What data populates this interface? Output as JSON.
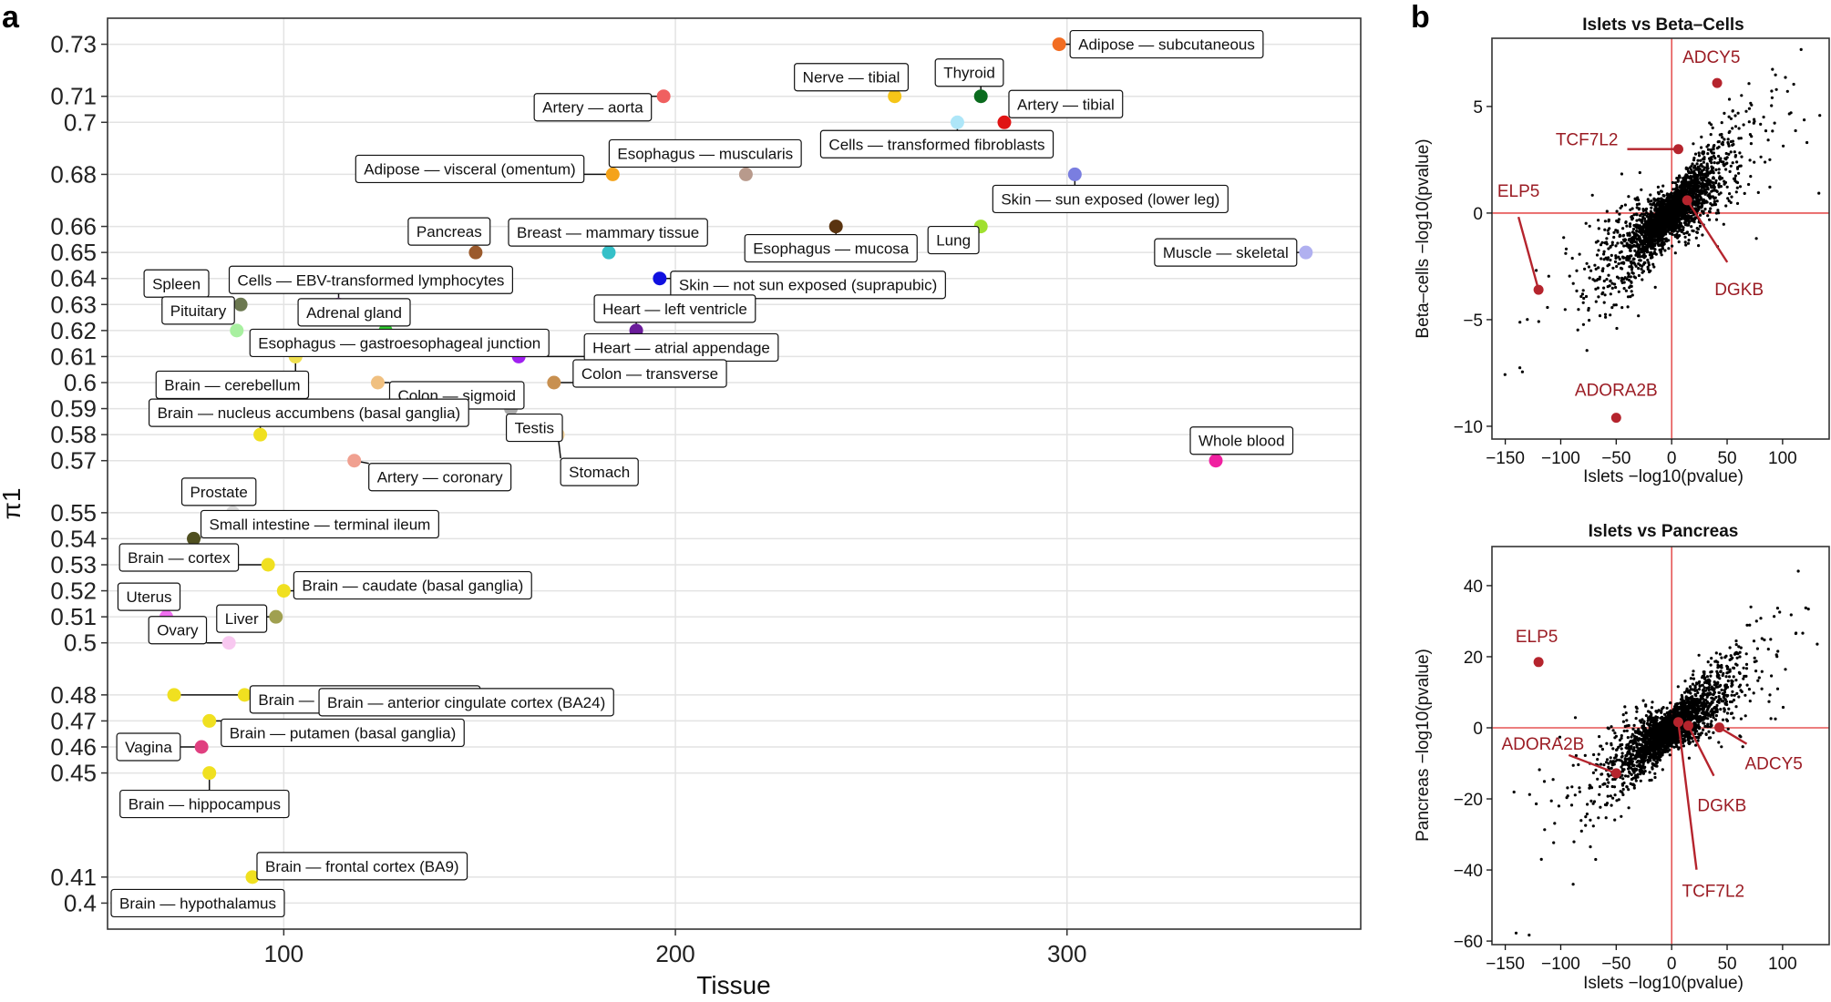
{
  "figure": {
    "panel_a_letter": "a",
    "panel_b_letter": "b"
  },
  "chart_data": [
    {
      "type": "scatter",
      "panel": "a",
      "title": "",
      "xlabel": "Tissue",
      "ylabel": "π1",
      "xlim": [
        55,
        375
      ],
      "ylim": [
        0.39,
        0.74
      ],
      "x_ticks": [
        100,
        200,
        300
      ],
      "y_ticks": [
        0.4,
        0.41,
        0.45,
        0.46,
        0.47,
        0.48,
        0.5,
        0.51,
        0.52,
        0.53,
        0.54,
        0.55,
        0.57,
        0.58,
        0.59,
        0.6,
        0.61,
        0.62,
        0.63,
        0.64,
        0.65,
        0.66,
        0.68,
        0.7,
        0.71,
        0.73
      ],
      "y_tick_labels": [
        "0.4",
        "0.41",
        "0.45",
        "0.46",
        "0.47",
        "0.48",
        "0.5",
        "0.51",
        "0.52",
        "0.53",
        "0.54",
        "0.55",
        "0.57",
        "0.58",
        "0.59",
        "0.6",
        "0.61",
        "0.62",
        "0.63",
        "0.64",
        "0.65",
        "0.66",
        "0.68",
        "0.7",
        "0.71",
        "0.73"
      ],
      "grid": true,
      "points": [
        {
          "label": "Adipose — subcutaneous",
          "x": 298,
          "y": 0.73,
          "color": "#f26d22"
        },
        {
          "label": "Nerve — tibial",
          "x": 256,
          "y": 0.71,
          "color": "#f5c518"
        },
        {
          "label": "Thyroid",
          "x": 278,
          "y": 0.71,
          "color": "#0a6b1e"
        },
        {
          "label": "Artery — aorta",
          "x": 197,
          "y": 0.71,
          "color": "#f06060"
        },
        {
          "label": "Artery — tibial",
          "x": 284,
          "y": 0.7,
          "color": "#e01414"
        },
        {
          "label": "Cells — transformed fibroblasts",
          "x": 272,
          "y": 0.7,
          "color": "#aee6f8"
        },
        {
          "label": "Esophagus — muscularis",
          "x": 218,
          "y": 0.68,
          "color": "#b89a8c"
        },
        {
          "label": "Adipose — visceral (omentum)",
          "x": 184,
          "y": 0.68,
          "color": "#f5a31a"
        },
        {
          "label": "Skin — sun exposed (lower leg)",
          "x": 302,
          "y": 0.68,
          "color": "#7a7ee0"
        },
        {
          "label": "Esophagus — mucosa",
          "x": 241,
          "y": 0.66,
          "color": "#5a3410"
        },
        {
          "label": "Lung",
          "x": 278,
          "y": 0.66,
          "color": "#a0e030"
        },
        {
          "label": "Pancreas",
          "x": 149,
          "y": 0.65,
          "color": "#9b5a2c"
        },
        {
          "label": "Breast — mammary tissue",
          "x": 183,
          "y": 0.65,
          "color": "#35c0c8"
        },
        {
          "label": "Muscle — skeletal",
          "x": 361,
          "y": 0.65,
          "color": "#b0b0f0"
        },
        {
          "label": "Skin — not sun exposed (suprapubic)",
          "x": 196,
          "y": 0.64,
          "color": "#1010e0"
        },
        {
          "label": "Spleen",
          "x": 89,
          "y": 0.63,
          "color": "#6b7850"
        },
        {
          "label": "Cells — EBV-transformed lymphocytes",
          "x": 114,
          "y": 0.63,
          "color": "#c070e0"
        },
        {
          "label": "Pituitary",
          "x": 88,
          "y": 0.62,
          "color": "#a8f0a0"
        },
        {
          "label": "Adrenal gland",
          "x": 126,
          "y": 0.62,
          "color": "#30d030"
        },
        {
          "label": "Heart — left ventricle",
          "x": 190,
          "y": 0.62,
          "color": "#6a1b9a"
        },
        {
          "label": "Esophagus — gastroesophageal junction",
          "x": 103,
          "y": 0.61,
          "color": "#f0e050"
        },
        {
          "label": "Heart — atrial appendage",
          "x": 160,
          "y": 0.61,
          "color": "#a020f0"
        },
        {
          "label": "Brain — cerebellum",
          "x": 103,
          "y": 0.61,
          "color": "#f0e050"
        },
        {
          "label": "Colon — sigmoid",
          "x": 124,
          "y": 0.6,
          "color": "#f0c080"
        },
        {
          "label": "Colon — transverse",
          "x": 169,
          "y": 0.6,
          "color": "#c89050"
        },
        {
          "label": "Testis",
          "x": 158,
          "y": 0.59,
          "color": "#aaaaaa"
        },
        {
          "label": "Brain — nucleus accumbens (basal ganglia)",
          "x": 94,
          "y": 0.58,
          "color": "#f0e020"
        },
        {
          "label": "Stomach",
          "x": 170,
          "y": 0.58,
          "color": "#f8d8a0"
        },
        {
          "label": "Whole blood",
          "x": 338,
          "y": 0.57,
          "color": "#f020a0"
        },
        {
          "label": "Artery — coronary",
          "x": 118,
          "y": 0.57,
          "color": "#f0a090"
        },
        {
          "label": "Prostate",
          "x": 87,
          "y": 0.55,
          "color": "#d8d8d8"
        },
        {
          "label": "Small intestine — terminal ileum",
          "x": 77,
          "y": 0.54,
          "color": "#505020"
        },
        {
          "label": "Brain — cortex",
          "x": 96,
          "y": 0.53,
          "color": "#f0e020"
        },
        {
          "label": "Brain — caudate (basal ganglia)",
          "x": 100,
          "y": 0.52,
          "color": "#f0e020"
        },
        {
          "label": "Uterus",
          "x": 70,
          "y": 0.51,
          "color": "#f070f0"
        },
        {
          "label": "Liver",
          "x": 98,
          "y": 0.51,
          "color": "#a0a050"
        },
        {
          "label": "Ovary",
          "x": 86,
          "y": 0.5,
          "color": "#f8c8f0"
        },
        {
          "label": "Brain — cerebellar hemisphere",
          "x": 90,
          "y": 0.48,
          "color": "#f0e020"
        },
        {
          "label": "Brain — anterior cingulate cortex (BA24)",
          "x": 72,
          "y": 0.48,
          "color": "#f0e020"
        },
        {
          "label": "Brain — putamen (basal ganglia)",
          "x": 81,
          "y": 0.47,
          "color": "#f0e020"
        },
        {
          "label": "Vagina",
          "x": 79,
          "y": 0.46,
          "color": "#e04080"
        },
        {
          "label": "Brain — hippocampus",
          "x": 81,
          "y": 0.45,
          "color": "#f0e020"
        },
        {
          "label": "Brain — frontal cortex (BA9)",
          "x": 92,
          "y": 0.41,
          "color": "#f0e020"
        },
        {
          "label": "Brain — hypothalamus",
          "x": 71,
          "y": 0.4,
          "color": "#f0e020"
        }
      ]
    },
    {
      "type": "scatter",
      "panel": "b-top",
      "title": "Islets vs Beta–Cells",
      "xlabel": "Islets −log10(pvalue)",
      "ylabel": "Beta–cells −log10(pvalue)",
      "xlim": [
        -162,
        142
      ],
      "ylim": [
        -10.6,
        8.2
      ],
      "x_ticks": [
        -150,
        -100,
        -50,
        0,
        50,
        100
      ],
      "x_tick_labels": [
        "−150",
        "−100",
        "−50",
        "0",
        "50",
        "100"
      ],
      "y_ticks": [
        -10,
        -5,
        0,
        5
      ],
      "y_tick_labels": [
        "−10",
        "−5",
        "0",
        "5"
      ],
      "reference_lines": {
        "x": 0,
        "y": 0,
        "color": "#e03030"
      },
      "background_cloud": {
        "n_points": 2500,
        "color": "#000000",
        "note": "dense scatter of genes concentrated near origin along diagonal"
      },
      "highlighted": [
        {
          "label": "ADCY5",
          "x": 41,
          "y": 6.1
        },
        {
          "label": "TCF7L2",
          "x": 6,
          "y": 3.0
        },
        {
          "label": "ELP5",
          "x": -120,
          "y": -3.6
        },
        {
          "label": "DGKB",
          "x": 14,
          "y": 0.6
        },
        {
          "label": "ADORA2B",
          "x": -50,
          "y": -9.6
        }
      ],
      "highlight_color": "#b5242d"
    },
    {
      "type": "scatter",
      "panel": "b-bottom",
      "title": "Islets vs Pancreas",
      "xlabel": "Islets −log10(pvalue)",
      "ylabel": "Pancreas −log10(pvalue)",
      "xlim": [
        -162,
        142
      ],
      "ylim": [
        -61,
        51
      ],
      "x_ticks": [
        -150,
        -100,
        -50,
        0,
        50,
        100
      ],
      "x_tick_labels": [
        "−150",
        "−100",
        "−50",
        "0",
        "50",
        "100"
      ],
      "y_ticks": [
        -60,
        -40,
        -20,
        0,
        20,
        40
      ],
      "y_tick_labels": [
        "−60",
        "−40",
        "−20",
        "0",
        "20",
        "40"
      ],
      "reference_lines": {
        "x": 0,
        "y": 0,
        "color": "#e03030"
      },
      "background_cloud": {
        "n_points": 2500,
        "color": "#000000",
        "note": "dense scatter of genes concentrated near origin along diagonal"
      },
      "highlighted": [
        {
          "label": "ELP5",
          "x": -120,
          "y": 18.5
        },
        {
          "label": "ADORA2B",
          "x": -50,
          "y": -12.8
        },
        {
          "label": "ADCY5",
          "x": 43,
          "y": 0.1
        },
        {
          "label": "DGKB",
          "x": 15,
          "y": 0.6
        },
        {
          "label": "TCF7L2",
          "x": 6,
          "y": 1.6
        }
      ],
      "highlight_color": "#b5242d"
    }
  ]
}
